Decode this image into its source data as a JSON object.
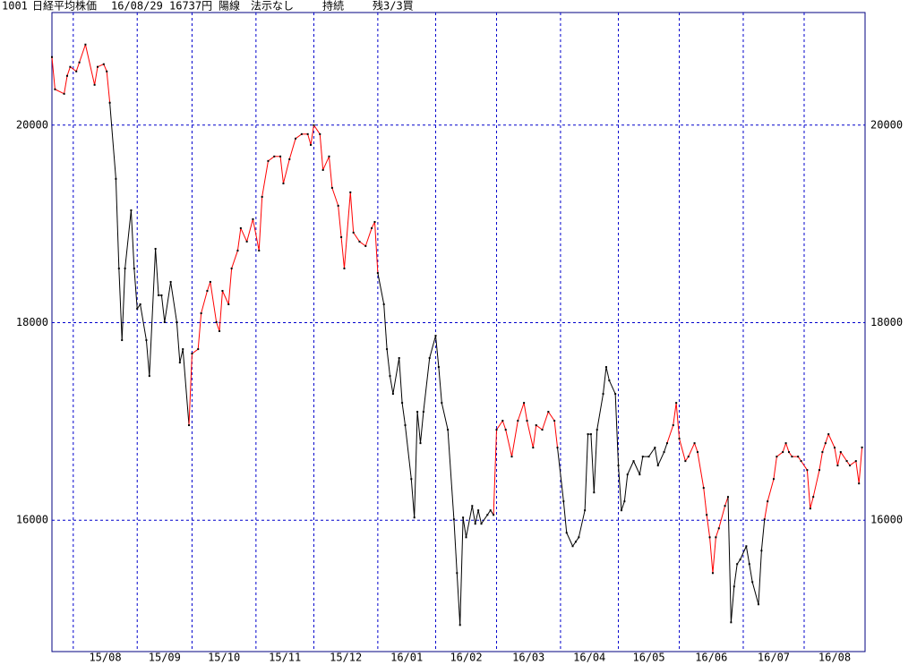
{
  "header": {
    "code": "1001",
    "name": "日経平均株価",
    "date": "16/08/29",
    "price": "16737円",
    "candle": "陽線",
    "hint": "法示なし",
    "trend": "持続",
    "position": "残3/3買"
  },
  "chart_data": {
    "type": "line",
    "grid": true,
    "frame_color": "#000080",
    "grid_color": "#0000cc",
    "xlim": [
      0,
      267
    ],
    "ylim": [
      14670,
      21140
    ],
    "yticks": [
      16000,
      18000,
      20000
    ],
    "month_starts": [
      7,
      28,
      46,
      67,
      86,
      107,
      126,
      146,
      167,
      186,
      206,
      227,
      247
    ],
    "categories": [
      "15/08",
      "15/09",
      "15/10",
      "15/11",
      "15/12",
      "16/01",
      "16/02",
      "16/03",
      "16/04",
      "16/05",
      "16/06",
      "16/07",
      "16/08"
    ],
    "series": [
      {
        "dot_color": "#000000",
        "x": [
          0,
          1,
          4,
          5,
          6,
          8,
          9,
          11,
          14,
          15,
          17,
          18,
          19,
          21,
          22,
          23,
          24,
          26,
          27,
          28,
          29,
          31,
          32,
          34,
          35,
          36,
          37,
          39,
          41,
          42,
          43,
          45,
          46,
          48,
          49,
          51,
          52,
          54,
          55,
          56,
          58,
          59,
          61,
          62,
          64,
          66,
          68,
          69,
          71,
          73,
          75,
          76,
          78,
          80,
          82,
          84,
          85,
          86,
          88,
          89,
          91,
          92,
          94,
          95,
          96,
          98,
          99,
          101,
          103,
          105,
          106,
          107,
          109,
          110,
          111,
          112,
          114,
          115,
          116,
          118,
          119,
          120,
          121,
          122,
          124,
          126,
          127,
          128,
          130,
          132,
          133,
          134,
          135,
          136,
          138,
          139,
          140,
          141,
          143,
          144,
          145,
          146,
          148,
          149,
          151,
          153,
          155,
          156,
          158,
          159,
          161,
          163,
          165,
          166,
          168,
          169,
          171,
          172,
          173,
          175,
          176,
          177,
          178,
          179,
          181,
          182,
          183,
          185,
          186,
          187,
          188,
          189,
          191,
          193,
          194,
          196,
          198,
          199,
          201,
          202,
          204,
          205,
          206,
          208,
          209,
          211,
          212,
          214,
          215,
          216,
          217,
          218,
          219,
          221,
          222,
          223,
          224,
          225,
          226,
          228,
          229,
          230,
          232,
          233,
          234,
          235,
          237,
          238,
          240,
          241,
          242,
          243,
          245,
          246,
          248,
          249,
          250,
          252,
          253,
          254,
          255,
          257,
          258,
          259,
          261,
          262,
          264,
          265,
          266
        ],
        "values": [
          20689,
          20363,
          20317,
          20499,
          20590,
          20544,
          20635,
          20816,
          20408,
          20590,
          20617,
          20544,
          20227,
          19456,
          18549,
          17823,
          18549,
          19138,
          18549,
          18141,
          18186,
          17823,
          17460,
          18748,
          18277,
          18277,
          18005,
          18413,
          18005,
          17596,
          17732,
          16962,
          17687,
          17732,
          18095,
          18322,
          18413,
          18005,
          17914,
          18322,
          18186,
          18549,
          18730,
          18957,
          18821,
          19048,
          18730,
          19274,
          19637,
          19683,
          19683,
          19410,
          19655,
          19864,
          19909,
          19909,
          19800,
          20000,
          19909,
          19546,
          19683,
          19365,
          19184,
          18866,
          18549,
          19320,
          18912,
          18821,
          18776,
          18957,
          19020,
          18503,
          18186,
          17732,
          17460,
          17279,
          17642,
          17188,
          16962,
          16417,
          16027,
          17098,
          16780,
          17098,
          17642,
          17868,
          17551,
          17188,
          16916,
          16009,
          15465,
          14939,
          16027,
          15827,
          16145,
          15964,
          16100,
          15964,
          16054,
          16100,
          16054,
          16916,
          17007,
          16916,
          16644,
          17007,
          17188,
          17007,
          16735,
          16962,
          16916,
          17098,
          17007,
          16735,
          16191,
          15873,
          15737,
          15782,
          15827,
          16100,
          16871,
          16871,
          16281,
          16916,
          17279,
          17551,
          17415,
          17279,
          16554,
          16100,
          16191,
          16463,
          16599,
          16463,
          16644,
          16644,
          16735,
          16554,
          16690,
          16780,
          16962,
          17188,
          16826,
          16599,
          16644,
          16780,
          16690,
          16327,
          16054,
          15827,
          15465,
          15827,
          15918,
          16145,
          16236,
          14966,
          15329,
          15556,
          15601,
          15737,
          15556,
          15374,
          15148,
          15692,
          16009,
          16191,
          16417,
          16644,
          16690,
          16780,
          16690,
          16644,
          16644,
          16599,
          16508,
          16118,
          16236,
          16508,
          16690,
          16780,
          16871,
          16735,
          16554,
          16690,
          16599,
          16554,
          16599,
          16372,
          16737
        ],
        "colors": [
          "#ff0000",
          "#ff0000",
          "#ff0000",
          "#ff0000",
          "#ff0000",
          "#ff0000",
          "#ff0000",
          "#ff0000",
          "#ff0000",
          "#ff0000",
          "#ff0000",
          "#ff0000",
          "#ff0000",
          "#000000",
          "#000000",
          "#000000",
          "#000000",
          "#000000",
          "#000000",
          "#000000",
          "#000000",
          "#000000",
          "#000000",
          "#000000",
          "#000000",
          "#000000",
          "#000000",
          "#000000",
          "#000000",
          "#000000",
          "#000000",
          "#000000",
          "#ff0000",
          "#ff0000",
          "#ff0000",
          "#ff0000",
          "#ff0000",
          "#ff0000",
          "#ff0000",
          "#ff0000",
          "#ff0000",
          "#ff0000",
          "#ff0000",
          "#ff0000",
          "#ff0000",
          "#ff0000",
          "#ff0000",
          "#ff0000",
          "#ff0000",
          "#ff0000",
          "#ff0000",
          "#ff0000",
          "#ff0000",
          "#ff0000",
          "#ff0000",
          "#ff0000",
          "#ff0000",
          "#ff0000",
          "#ff0000",
          "#ff0000",
          "#ff0000",
          "#ff0000",
          "#ff0000",
          "#ff0000",
          "#ff0000",
          "#ff0000",
          "#ff0000",
          "#ff0000",
          "#ff0000",
          "#ff0000",
          "#ff0000",
          "#ff0000",
          "#000000",
          "#000000",
          "#000000",
          "#000000",
          "#000000",
          "#000000",
          "#000000",
          "#000000",
          "#000000",
          "#000000",
          "#000000",
          "#000000",
          "#000000",
          "#000000",
          "#000000",
          "#000000",
          "#000000",
          "#000000",
          "#000000",
          "#000000",
          "#000000",
          "#000000",
          "#000000",
          "#000000",
          "#000000",
          "#000000",
          "#000000",
          "#000000",
          "#000000",
          "#ff0000",
          "#ff0000",
          "#ff0000",
          "#ff0000",
          "#ff0000",
          "#ff0000",
          "#ff0000",
          "#ff0000",
          "#ff0000",
          "#ff0000",
          "#ff0000",
          "#ff0000",
          "#ff0000",
          "#000000",
          "#000000",
          "#000000",
          "#000000",
          "#000000",
          "#000000",
          "#000000",
          "#000000",
          "#000000",
          "#000000",
          "#000000",
          "#000000",
          "#000000",
          "#000000",
          "#000000",
          "#000000",
          "#000000",
          "#000000",
          "#000000",
          "#000000",
          "#000000",
          "#000000",
          "#000000",
          "#000000",
          "#000000",
          "#000000",
          "#ff0000",
          "#ff0000",
          "#ff0000",
          "#ff0000",
          "#ff0000",
          "#ff0000",
          "#ff0000",
          "#ff0000",
          "#ff0000",
          "#ff0000",
          "#ff0000",
          "#ff0000",
          "#ff0000",
          "#ff0000",
          "#ff0000",
          "#000000",
          "#000000",
          "#000000",
          "#000000",
          "#000000",
          "#000000",
          "#000000",
          "#000000",
          "#000000",
          "#000000",
          "#ff0000",
          "#ff0000",
          "#ff0000",
          "#ff0000",
          "#ff0000",
          "#ff0000",
          "#ff0000",
          "#ff0000",
          "#ff0000",
          "#ff0000",
          "#ff0000",
          "#ff0000",
          "#ff0000",
          "#ff0000",
          "#ff0000",
          "#ff0000",
          "#ff0000",
          "#ff0000",
          "#ff0000",
          "#ff0000",
          "#ff0000",
          "#ff0000",
          "#ff0000",
          "#ff0000"
        ]
      }
    ]
  }
}
